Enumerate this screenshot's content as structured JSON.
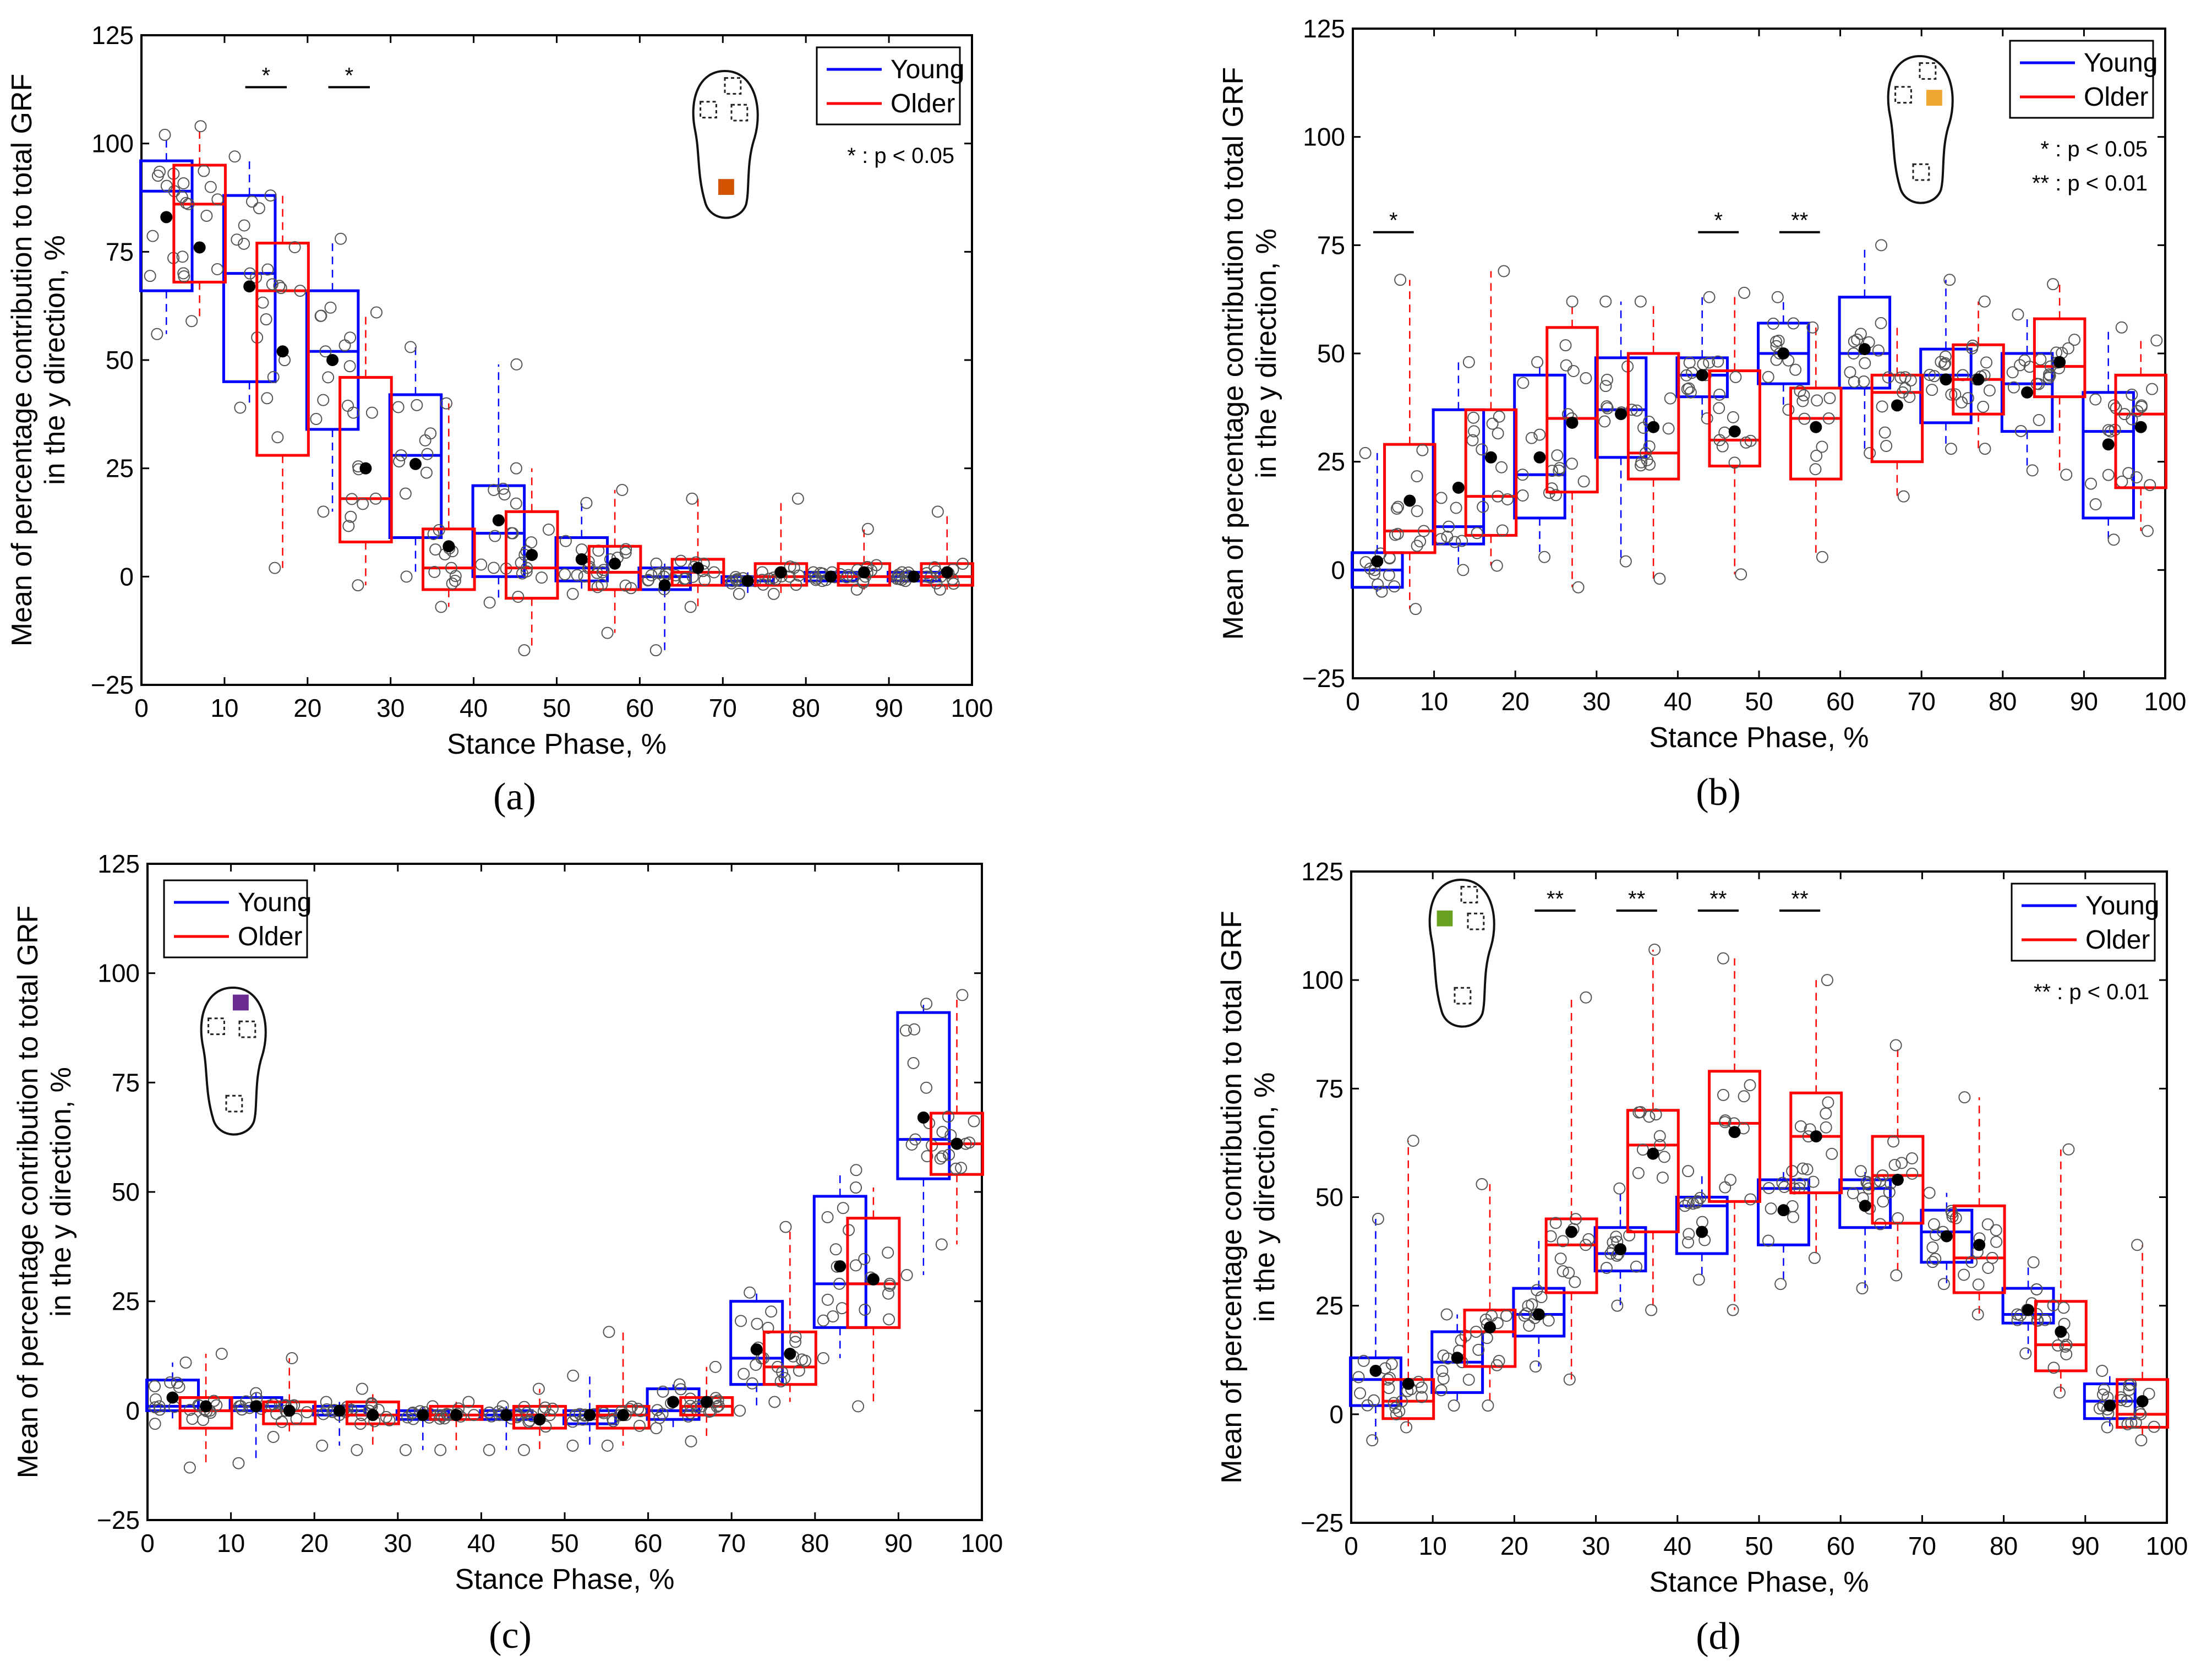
{
  "legend": {
    "young": "Young",
    "older": "Older"
  },
  "colors": {
    "young": "#0000ff",
    "older": "#ff0000",
    "mean": "#000000",
    "axis": "#000000"
  },
  "chart_data": [
    {
      "panel": "a",
      "caption": "(a)",
      "type": "box",
      "xlabel": "Stance Phase, %",
      "ylabel_line1": "Mean of percentage contribution to total GRF",
      "ylabel_line2": "in the y direction, %",
      "xlim": [
        0,
        100
      ],
      "ylim": [
        -25,
        125
      ],
      "xticks": [
        "0",
        "10",
        "20",
        "30",
        "40",
        "50",
        "60",
        "70",
        "80",
        "90",
        "100"
      ],
      "yticks": [
        "−25",
        "0",
        "25",
        "50",
        "75",
        "100",
        "125"
      ],
      "legend_location": "top-right",
      "sensor_color": "#d35400",
      "sensor_location": "heel",
      "significance_legend": [
        "* : p < 0.05"
      ],
      "significance": [
        {
          "bin": 1,
          "label": "*"
        },
        {
          "bin": 2,
          "label": "*"
        }
      ],
      "series": [
        {
          "name": "Young",
          "boxes": [
            {
              "q1": 66,
              "median": 89,
              "q3": 96,
              "wlo": 56,
              "whi": 102,
              "mean": 83
            },
            {
              "q1": 45,
              "median": 70,
              "q3": 88,
              "wlo": 39,
              "whi": 97,
              "mean": 67
            },
            {
              "q1": 34,
              "median": 52,
              "q3": 66,
              "wlo": 15,
              "whi": 78,
              "mean": 50
            },
            {
              "q1": 9,
              "median": 28,
              "q3": 42,
              "wlo": 0,
              "whi": 53,
              "mean": 26
            },
            {
              "q1": 0,
              "median": 10,
              "q3": 21,
              "wlo": -6,
              "whi": 49,
              "mean": 13
            },
            {
              "q1": -1,
              "median": 2,
              "q3": 9,
              "wlo": -4,
              "whi": 17,
              "mean": 4
            },
            {
              "q1": -3,
              "median": 0,
              "q3": 2,
              "wlo": -17,
              "whi": 3,
              "mean": -2
            },
            {
              "q1": -2,
              "median": -1,
              "q3": 0,
              "wlo": -4,
              "whi": 1,
              "mean": -1
            },
            {
              "q1": -1,
              "median": 0,
              "q3": 1,
              "wlo": -1,
              "whi": 1,
              "mean": 0
            },
            {
              "q1": -1,
              "median": 0,
              "q3": 1,
              "wlo": -1,
              "whi": 1,
              "mean": 0
            }
          ]
        },
        {
          "name": "Older",
          "boxes": [
            {
              "q1": 68,
              "median": 86,
              "q3": 95,
              "wlo": 59,
              "whi": 104,
              "mean": 76
            },
            {
              "q1": 28,
              "median": 66,
              "q3": 77,
              "wlo": 2,
              "whi": 88,
              "mean": 52
            },
            {
              "q1": 8,
              "median": 18,
              "q3": 46,
              "wlo": -2,
              "whi": 61,
              "mean": 25
            },
            {
              "q1": -3,
              "median": 2,
              "q3": 11,
              "wlo": -7,
              "whi": 40,
              "mean": 7
            },
            {
              "q1": -5,
              "median": 2,
              "q3": 15,
              "wlo": -17,
              "whi": 25,
              "mean": 5
            },
            {
              "q1": -3,
              "median": 1,
              "q3": 7,
              "wlo": -13,
              "whi": 20,
              "mean": 3
            },
            {
              "q1": -2,
              "median": 1,
              "q3": 4,
              "wlo": -7,
              "whi": 18,
              "mean": 2
            },
            {
              "q1": -2,
              "median": 0,
              "q3": 3,
              "wlo": -4,
              "whi": 18,
              "mean": 1
            },
            {
              "q1": -2,
              "median": 0,
              "q3": 3,
              "wlo": -3,
              "whi": 11,
              "mean": 1
            },
            {
              "q1": -2,
              "median": 0,
              "q3": 3,
              "wlo": -3,
              "whi": 15,
              "mean": 1
            }
          ]
        }
      ]
    },
    {
      "panel": "b",
      "caption": "(b)",
      "type": "box",
      "xlabel": "Stance Phase, %",
      "ylabel_line1": "Mean of percentage contribution to total GRF",
      "ylabel_line2": "in the y direction, %",
      "xlim": [
        0,
        100
      ],
      "ylim": [
        -25,
        125
      ],
      "xticks": [
        "0",
        "10",
        "20",
        "30",
        "40",
        "50",
        "60",
        "70",
        "80",
        "90",
        "100"
      ],
      "yticks": [
        "−25",
        "0",
        "25",
        "50",
        "75",
        "100",
        "125"
      ],
      "legend_location": "top-right",
      "sensor_color": "#f0a830",
      "sensor_location": "medial-forefoot",
      "significance_legend": [
        "* : p < 0.05",
        "** : p < 0.01"
      ],
      "significance": [
        {
          "bin": 0,
          "label": "*"
        },
        {
          "bin": 4,
          "label": "*"
        },
        {
          "bin": 5,
          "label": "**"
        }
      ],
      "series": [
        {
          "name": "Young",
          "boxes": [
            {
              "q1": -4,
              "median": 0,
              "q3": 4,
              "wlo": -5,
              "whi": 27,
              "mean": 2
            },
            {
              "q1": 6,
              "median": 10,
              "q3": 37,
              "wlo": 0,
              "whi": 48,
              "mean": 19
            },
            {
              "q1": 12,
              "median": 22,
              "q3": 45,
              "wlo": 3,
              "whi": 48,
              "mean": 26
            },
            {
              "q1": 26,
              "median": 37,
              "q3": 49,
              "wlo": 2,
              "whi": 62,
              "mean": 36
            },
            {
              "q1": 40,
              "median": 45,
              "q3": 49,
              "wlo": 35,
              "whi": 63,
              "mean": 45
            },
            {
              "q1": 43,
              "median": 50,
              "q3": 57,
              "wlo": 37,
              "whi": 63,
              "mean": 50
            },
            {
              "q1": 42,
              "median": 50,
              "q3": 63,
              "wlo": 27,
              "whi": 75,
              "mean": 51
            },
            {
              "q1": 34,
              "median": 45,
              "q3": 51,
              "wlo": 28,
              "whi": 67,
              "mean": 44
            },
            {
              "q1": 32,
              "median": 43,
              "q3": 50,
              "wlo": 23,
              "whi": 59,
              "mean": 41
            },
            {
              "q1": 12,
              "median": 32,
              "q3": 41,
              "wlo": 7,
              "whi": 56,
              "mean": 29
            }
          ]
        },
        {
          "name": "Older",
          "boxes": [
            {
              "q1": 4,
              "median": 9,
              "q3": 29,
              "wlo": -9,
              "whi": 67,
              "mean": 16
            },
            {
              "q1": 8,
              "median": 17,
              "q3": 37,
              "wlo": 1,
              "whi": 69,
              "mean": 26
            },
            {
              "q1": 18,
              "median": 35,
              "q3": 56,
              "wlo": -4,
              "whi": 62,
              "mean": 34
            },
            {
              "q1": 21,
              "median": 27,
              "q3": 50,
              "wlo": -2,
              "whi": 62,
              "mean": 33
            },
            {
              "q1": 24,
              "median": 30,
              "q3": 46,
              "wlo": -1,
              "whi": 64,
              "mean": 32
            },
            {
              "q1": 21,
              "median": 35,
              "q3": 42,
              "wlo": 3,
              "whi": 56,
              "mean": 33
            },
            {
              "q1": 25,
              "median": 41,
              "q3": 45,
              "wlo": 17,
              "whi": 57,
              "mean": 38
            },
            {
              "q1": 36,
              "median": 44,
              "q3": 52,
              "wlo": 28,
              "whi": 62,
              "mean": 44
            },
            {
              "q1": 40,
              "median": 47,
              "q3": 58,
              "wlo": 22,
              "whi": 66,
              "mean": 48
            },
            {
              "q1": 19,
              "median": 36,
              "q3": 45,
              "wlo": 9,
              "whi": 53,
              "mean": 33
            }
          ]
        }
      ]
    },
    {
      "panel": "c",
      "caption": "(c)",
      "type": "box",
      "xlabel": "Stance Phase, %",
      "ylabel_line1": "Mean of percentage contribution to total GRF",
      "ylabel_line2": "in the y direction, %",
      "xlim": [
        0,
        100
      ],
      "ylim": [
        -25,
        125
      ],
      "xticks": [
        "0",
        "10",
        "20",
        "30",
        "40",
        "50",
        "60",
        "70",
        "80",
        "90",
        "100"
      ],
      "yticks": [
        "−25",
        "0",
        "25",
        "50",
        "75",
        "100",
        "125"
      ],
      "legend_location": "top-left",
      "sensor_color": "#6a2c91",
      "sensor_location": "lateral-forefoot",
      "significance_legend": [],
      "significance": [],
      "series": [
        {
          "name": "Young",
          "boxes": [
            {
              "q1": 0,
              "median": 1,
              "q3": 7,
              "wlo": -3,
              "whi": 11,
              "mean": 3
            },
            {
              "q1": 0,
              "median": 1,
              "q3": 3,
              "wlo": -12,
              "whi": 4,
              "mean": 1
            },
            {
              "q1": -1,
              "median": 0,
              "q3": 1,
              "wlo": -8,
              "whi": 2,
              "mean": 0
            },
            {
              "q1": -2,
              "median": -1,
              "q3": 0,
              "wlo": -9,
              "whi": 1,
              "mean": -1
            },
            {
              "q1": -2,
              "median": -1,
              "q3": 0,
              "wlo": -9,
              "whi": 1,
              "mean": -1
            },
            {
              "q1": -3,
              "median": -1,
              "q3": 0,
              "wlo": -8,
              "whi": 8,
              "mean": -1
            },
            {
              "q1": -2,
              "median": 0,
              "q3": 5,
              "wlo": -4,
              "whi": 6,
              "mean": 2
            },
            {
              "q1": 6,
              "median": 12,
              "q3": 25,
              "wlo": 0,
              "whi": 27,
              "mean": 14
            },
            {
              "q1": 19,
              "median": 29,
              "q3": 49,
              "wlo": 12,
              "whi": 55,
              "mean": 33
            },
            {
              "q1": 53,
              "median": 62,
              "q3": 91,
              "wlo": 31,
              "whi": 93,
              "mean": 67
            }
          ]
        },
        {
          "name": "Older",
          "boxes": [
            {
              "q1": -4,
              "median": 0,
              "q3": 3,
              "wlo": -13,
              "whi": 13,
              "mean": 1
            },
            {
              "q1": -3,
              "median": 0,
              "q3": 2,
              "wlo": -6,
              "whi": 12,
              "mean": 0
            },
            {
              "q1": -3,
              "median": -1,
              "q3": 2,
              "wlo": -9,
              "whi": 5,
              "mean": -1
            },
            {
              "q1": -2,
              "median": -1,
              "q3": 1,
              "wlo": -9,
              "whi": 2,
              "mean": -1
            },
            {
              "q1": -4,
              "median": -1,
              "q3": 1,
              "wlo": -9,
              "whi": 5,
              "mean": -2
            },
            {
              "q1": -4,
              "median": -1,
              "q3": 1,
              "wlo": -8,
              "whi": 18,
              "mean": -1
            },
            {
              "q1": -1,
              "median": 1,
              "q3": 3,
              "wlo": -7,
              "whi": 10,
              "mean": 2
            },
            {
              "q1": 6,
              "median": 10,
              "q3": 18,
              "wlo": 2,
              "whi": 42,
              "mean": 13
            },
            {
              "q1": 19,
              "median": 29,
              "q3": 44,
              "wlo": 1,
              "whi": 51,
              "mean": 30
            },
            {
              "q1": 54,
              "median": 61,
              "q3": 68,
              "wlo": 38,
              "whi": 95,
              "mean": 61
            }
          ]
        }
      ]
    },
    {
      "panel": "d",
      "caption": "(d)",
      "type": "box",
      "xlabel": "Stance Phase, %",
      "ylabel_line1": "Mean of percentage contribution to total GRF",
      "ylabel_line2": "in the y direction, %",
      "xlim": [
        0,
        100
      ],
      "ylim": [
        -25,
        125
      ],
      "xticks": [
        "0",
        "10",
        "20",
        "30",
        "40",
        "50",
        "60",
        "70",
        "80",
        "90",
        "100"
      ],
      "yticks": [
        "−25",
        "0",
        "25",
        "50",
        "75",
        "100",
        "125"
      ],
      "legend_location": "top-right",
      "sensor_color": "#6aa121",
      "sensor_location": "hallux",
      "significance_legend": [
        "** : p < 0.01"
      ],
      "significance": [
        {
          "bin": 2,
          "label": "**"
        },
        {
          "bin": 3,
          "label": "**"
        },
        {
          "bin": 4,
          "label": "**"
        },
        {
          "bin": 5,
          "label": "**"
        }
      ],
      "series": [
        {
          "name": "Young",
          "boxes": [
            {
              "q1": 2,
              "median": 8,
              "q3": 13,
              "wlo": -6,
              "whi": 45,
              "mean": 10
            },
            {
              "q1": 5,
              "median": 12,
              "q3": 19,
              "wlo": 2,
              "whi": 23,
              "mean": 13
            },
            {
              "q1": 18,
              "median": 23,
              "q3": 29,
              "wlo": 11,
              "whi": 41,
              "mean": 23
            },
            {
              "q1": 33,
              "median": 37,
              "q3": 43,
              "wlo": 25,
              "whi": 52,
              "mean": 38
            },
            {
              "q1": 37,
              "median": 48,
              "q3": 50,
              "wlo": 31,
              "whi": 56,
              "mean": 42
            },
            {
              "q1": 39,
              "median": 52,
              "q3": 54,
              "wlo": 30,
              "whi": 56,
              "mean": 47
            },
            {
              "q1": 43,
              "median": 52,
              "q3": 54,
              "wlo": 29,
              "whi": 56,
              "mean": 48
            },
            {
              "q1": 35,
              "median": 42,
              "q3": 47,
              "wlo": 30,
              "whi": 51,
              "mean": 41
            },
            {
              "q1": 21,
              "median": 23,
              "q3": 29,
              "wlo": 14,
              "whi": 35,
              "mean": 24
            },
            {
              "q1": -1,
              "median": 3,
              "q3": 7,
              "wlo": -3,
              "whi": 10,
              "mean": 2
            }
          ]
        },
        {
          "name": "Older",
          "boxes": [
            {
              "q1": -1,
              "median": 3,
              "q3": 8,
              "wlo": -3,
              "whi": 63,
              "mean": 7
            },
            {
              "q1": 11,
              "median": 19,
              "q3": 24,
              "wlo": 2,
              "whi": 53,
              "mean": 20
            },
            {
              "q1": 28,
              "median": 39,
              "q3": 45,
              "wlo": 8,
              "whi": 96,
              "mean": 42
            },
            {
              "q1": 42,
              "median": 62,
              "q3": 70,
              "wlo": 24,
              "whi": 107,
              "mean": 60
            },
            {
              "q1": 49,
              "median": 67,
              "q3": 79,
              "wlo": 24,
              "whi": 105,
              "mean": 65
            },
            {
              "q1": 51,
              "median": 64,
              "q3": 74,
              "wlo": 36,
              "whi": 100,
              "mean": 64
            },
            {
              "q1": 44,
              "median": 55,
              "q3": 64,
              "wlo": 32,
              "whi": 85,
              "mean": 54
            },
            {
              "q1": 28,
              "median": 36,
              "q3": 48,
              "wlo": 23,
              "whi": 73,
              "mean": 39
            },
            {
              "q1": 10,
              "median": 16,
              "q3": 26,
              "wlo": 5,
              "whi": 61,
              "mean": 19
            },
            {
              "q1": -3,
              "median": 0,
              "q3": 8,
              "wlo": -6,
              "whi": 39,
              "mean": 3
            }
          ]
        }
      ]
    }
  ]
}
